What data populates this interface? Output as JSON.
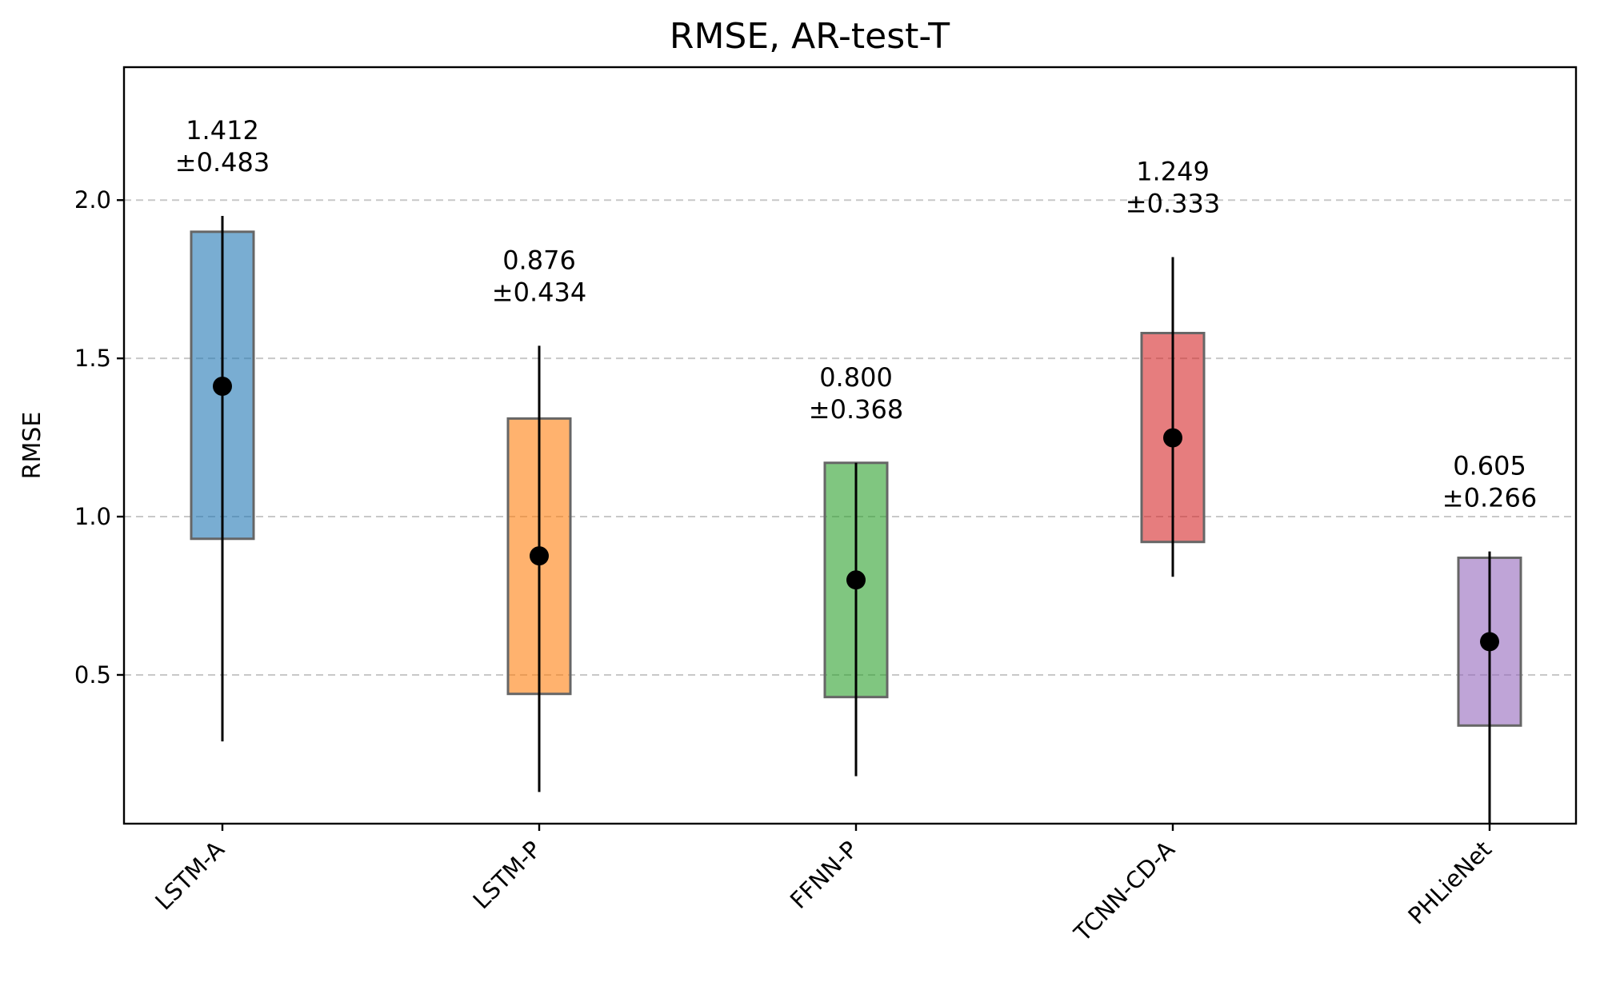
{
  "chart_data": {
    "type": "box",
    "title": "RMSE, AR-test-T",
    "xlabel": "",
    "ylabel": "RMSE",
    "ylim": [
      0.03,
      2.42
    ],
    "yticks": [
      "0.5",
      "1.0",
      "1.5",
      "2.0"
    ],
    "ytick_values": [
      0.5,
      1.0,
      1.5,
      2.0
    ],
    "grid": "horizontal dashed",
    "categories": [
      "LSTM-A",
      "LSTM-P",
      "FFNN-P",
      "TCNN-CD-A",
      "PHLieNet"
    ],
    "series": [
      {
        "category": "LSTM-A",
        "mean": 1.412,
        "box_low": 0.93,
        "box_high": 1.9,
        "whisker_low": 0.29,
        "whisker_high": 1.95,
        "annotation_value": "1.412",
        "annotation_std": "±0.483",
        "color": "#1f77b4"
      },
      {
        "category": "LSTM-P",
        "mean": 0.876,
        "box_low": 0.44,
        "box_high": 1.31,
        "whisker_low": 0.13,
        "whisker_high": 1.54,
        "annotation_value": "0.876",
        "annotation_std": "±0.434",
        "color": "#ff7f0e"
      },
      {
        "category": "FFNN-P",
        "mean": 0.8,
        "box_low": 0.43,
        "box_high": 1.17,
        "whisker_low": 0.18,
        "whisker_high": 1.17,
        "annotation_value": "0.800",
        "annotation_std": "±0.368",
        "color": "#2ca02c"
      },
      {
        "category": "TCNN-CD-A",
        "mean": 1.249,
        "box_low": 0.92,
        "box_high": 1.58,
        "whisker_low": 0.81,
        "whisker_high": 1.82,
        "annotation_value": "1.249",
        "annotation_std": "±0.333",
        "color": "#d62728"
      },
      {
        "category": "PHLieNet",
        "mean": 0.605,
        "box_low": 0.34,
        "box_high": 0.87,
        "whisker_low": 0.03,
        "whisker_high": 0.89,
        "annotation_value": "0.605",
        "annotation_std": "±0.266",
        "color": "#9467bd"
      }
    ]
  }
}
